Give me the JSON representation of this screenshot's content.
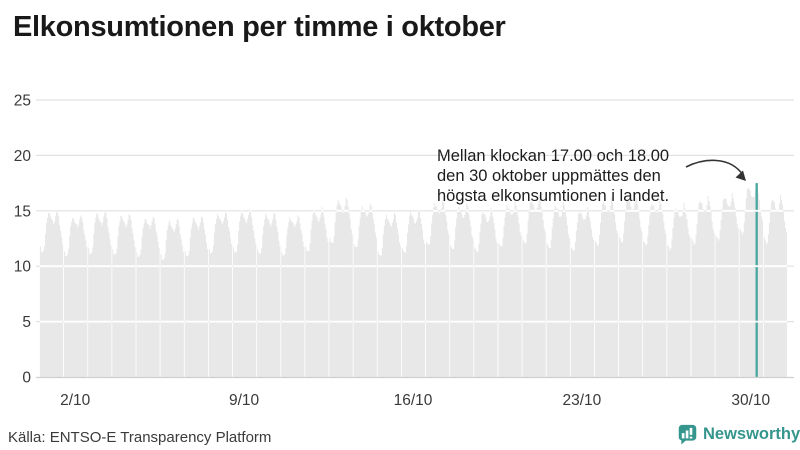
{
  "title": "Elkonsumtionen per timme i oktober",
  "annotation": {
    "lines": [
      "Mellan klockan 17.00 och 18.00",
      "den 30 oktober uppmättes den",
      "högsta elkonsumtionen i landet."
    ]
  },
  "source": "Källa: ENTSO-E Transparency Platform",
  "branding": {
    "wordmark": "Newsworthy",
    "icon": "bar-chart-speech-bubble",
    "color": "#35968e"
  },
  "colors": {
    "background": "#ffffff",
    "bar": "#e8e8e8",
    "highlight": "#4fa9a1",
    "gridline": "#e2e2e2",
    "gridline_over_bars": "#ffffff",
    "baseline": "#cfcfcf",
    "axis_text": "#3a3a3a",
    "title_text": "#191919",
    "arrow": "#333333"
  },
  "chart_data": {
    "type": "bar",
    "description": "Hourly electricity consumption in Sweden during October, one thin bar per hour (744 bars), grouped per day with small white gaps at day boundaries",
    "xlabel": "",
    "ylabel": "",
    "ylim": [
      0,
      25
    ],
    "y_ticks": [
      0,
      5,
      10,
      15,
      20,
      25
    ],
    "x_ticks": [
      {
        "day": 2,
        "label": "2/10"
      },
      {
        "day": 9,
        "label": "9/10"
      },
      {
        "day": 16,
        "label": "16/10"
      },
      {
        "day": 23,
        "label": "23/10"
      },
      {
        "day": 30,
        "label": "30/10"
      }
    ],
    "days": 31,
    "hours_per_day": 24,
    "grid": true,
    "legend": false,
    "hourly_profile": [
      0.8,
      0.77,
      0.75,
      0.74,
      0.75,
      0.79,
      0.86,
      0.92,
      0.96,
      0.98,
      0.97,
      0.96,
      0.94,
      0.93,
      0.92,
      0.93,
      0.96,
      1.0,
      0.98,
      0.95,
      0.91,
      0.87,
      0.83,
      0.8
    ],
    "daily_peaks": [
      15.1,
      14.7,
      15.0,
      14.8,
      14.6,
      14.3,
      14.6,
      15.0,
      15.2,
      14.9,
      14.7,
      15.3,
      16.2,
      15.7,
      14.8,
      15.1,
      16.0,
      15.6,
      15.2,
      15.8,
      16.3,
      15.7,
      15.3,
      16.1,
      16.4,
      16.0,
      15.6,
      16.2,
      16.6,
      17.5,
      16.3
    ],
    "highlight": {
      "day": 30,
      "hour": 17,
      "value": 17.5
    }
  }
}
